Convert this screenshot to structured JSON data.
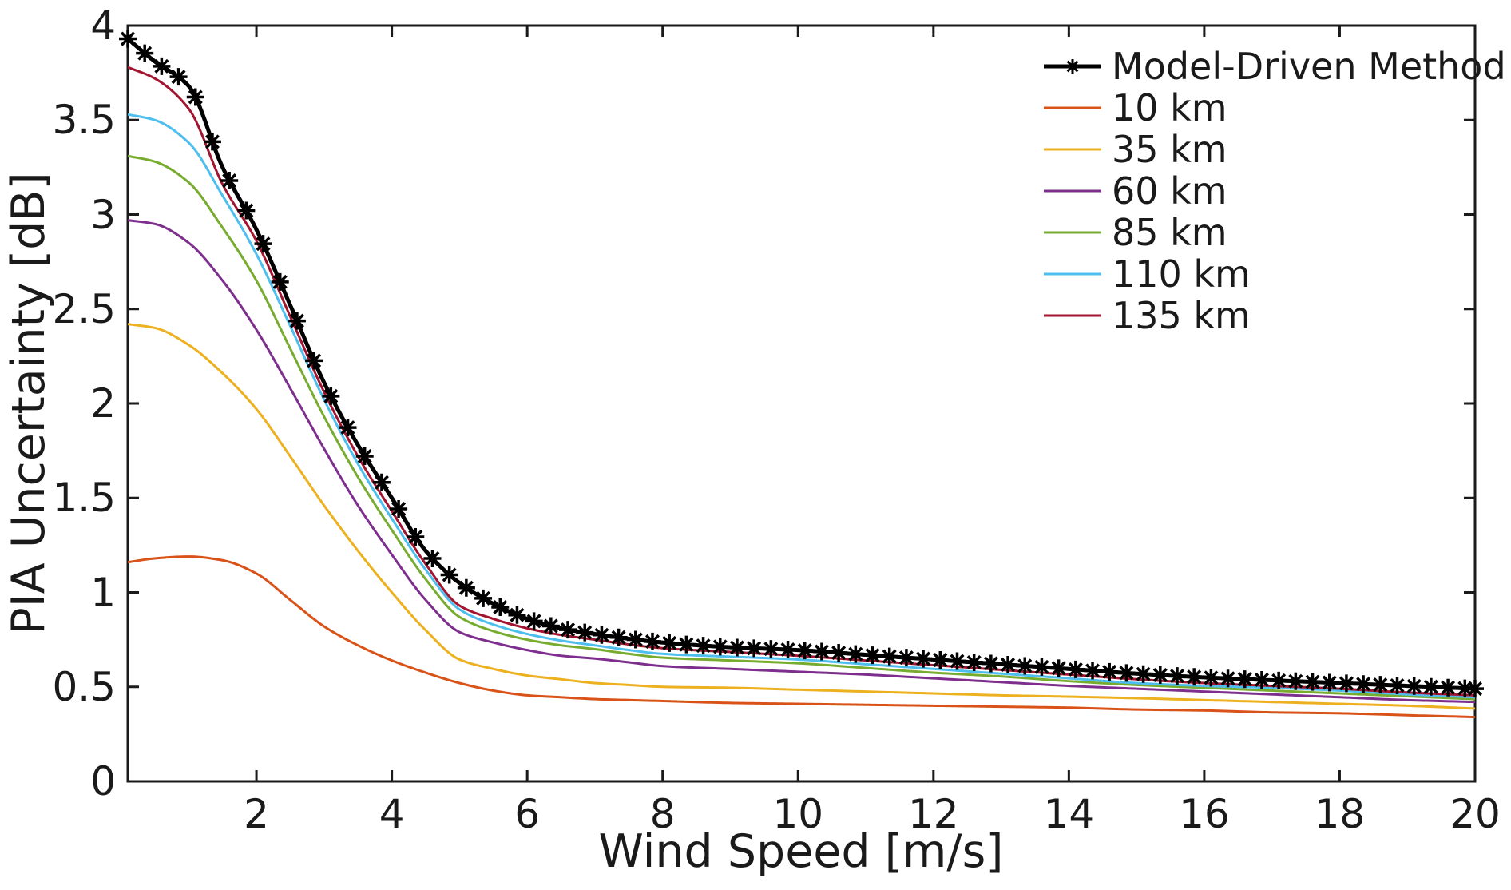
{
  "figure": {
    "background": "#ffffff",
    "text_color": "#1a1a1a"
  },
  "chart_data": {
    "type": "line",
    "title": "",
    "xlabel": "Wind Speed [m/s]",
    "ylabel": "PIA Uncertainty [dB]",
    "xlim": [
      0.1,
      20
    ],
    "ylim": [
      0,
      4
    ],
    "grid": false,
    "box": true,
    "tick_direction": "in",
    "legend_position": "inside-top-right",
    "axis_color": "#1a1a1a",
    "x_ticks": [
      {
        "v": 2,
        "label": "2"
      },
      {
        "v": 4,
        "label": "4"
      },
      {
        "v": 6,
        "label": "6"
      },
      {
        "v": 8,
        "label": "8"
      },
      {
        "v": 10,
        "label": "10"
      },
      {
        "v": 12,
        "label": "12"
      },
      {
        "v": 14,
        "label": "14"
      },
      {
        "v": 16,
        "label": "16"
      },
      {
        "v": 18,
        "label": "18"
      },
      {
        "v": 20,
        "label": "20"
      }
    ],
    "y_ticks": [
      {
        "v": 0,
        "label": "0"
      },
      {
        "v": 0.5,
        "label": "0.5"
      },
      {
        "v": 1,
        "label": "1"
      },
      {
        "v": 1.5,
        "label": "1.5"
      },
      {
        "v": 2,
        "label": "2"
      },
      {
        "v": 2.5,
        "label": "2.5"
      },
      {
        "v": 3,
        "label": "3"
      },
      {
        "v": 3.5,
        "label": "3.5"
      },
      {
        "v": 4,
        "label": "4"
      }
    ],
    "series": [
      {
        "name": "Model-Driven Method",
        "color": "#000000",
        "line_width": 5,
        "marker": "asterisk",
        "marker_interval": 0.25,
        "x": [
          0.1,
          0.5,
          1,
          1.5,
          2,
          2.5,
          3,
          3.5,
          4,
          4.5,
          5,
          5.5,
          6,
          6.5,
          7,
          7.5,
          8,
          9,
          10,
          11,
          12,
          13,
          14,
          15,
          16,
          17,
          18,
          19,
          20
        ],
        "y": [
          3.93,
          3.81,
          3.68,
          3.25,
          2.92,
          2.52,
          2.11,
          1.78,
          1.5,
          1.22,
          1.05,
          0.94,
          0.86,
          0.81,
          0.78,
          0.755,
          0.735,
          0.71,
          0.695,
          0.67,
          0.645,
          0.62,
          0.595,
          0.57,
          0.55,
          0.535,
          0.52,
          0.505,
          0.49
        ]
      },
      {
        "name": "10 km",
        "color": "#D95319",
        "line_width": 3,
        "marker": "none",
        "x": [
          0.1,
          0.5,
          1,
          1.5,
          2,
          2.5,
          3,
          3.5,
          4,
          4.5,
          5,
          5.5,
          6,
          6.5,
          7,
          7.5,
          8,
          9,
          10,
          11,
          12,
          13,
          14,
          15,
          16,
          17,
          18,
          19,
          20
        ],
        "y": [
          1.16,
          1.18,
          1.19,
          1.17,
          1.1,
          0.96,
          0.82,
          0.72,
          0.64,
          0.575,
          0.52,
          0.48,
          0.455,
          0.445,
          0.435,
          0.43,
          0.425,
          0.415,
          0.41,
          0.405,
          0.4,
          0.395,
          0.39,
          0.38,
          0.375,
          0.365,
          0.36,
          0.35,
          0.34
        ]
      },
      {
        "name": "35 km",
        "color": "#EDB120",
        "line_width": 3,
        "marker": "none",
        "x": [
          0.1,
          0.5,
          1,
          1.5,
          2,
          2.5,
          3,
          3.5,
          4,
          4.5,
          5,
          5.5,
          6,
          6.5,
          7,
          7.5,
          8,
          9,
          10,
          11,
          12,
          13,
          14,
          15,
          16,
          17,
          18,
          19,
          20
        ],
        "y": [
          2.42,
          2.4,
          2.31,
          2.16,
          1.97,
          1.72,
          1.46,
          1.22,
          1.0,
          0.8,
          0.645,
          0.595,
          0.56,
          0.54,
          0.52,
          0.51,
          0.5,
          0.495,
          0.485,
          0.475,
          0.465,
          0.455,
          0.448,
          0.44,
          0.43,
          0.42,
          0.41,
          0.4,
          0.385
        ]
      },
      {
        "name": "60 km",
        "color": "#7E2F8E",
        "line_width": 3,
        "marker": "none",
        "x": [
          0.1,
          0.5,
          1,
          1.5,
          2,
          2.5,
          3,
          3.5,
          4,
          4.5,
          5,
          5.5,
          6,
          6.5,
          7,
          7.5,
          8,
          9,
          10,
          11,
          12,
          13,
          14,
          15,
          16,
          17,
          18,
          19,
          20
        ],
        "y": [
          2.97,
          2.95,
          2.85,
          2.65,
          2.39,
          2.08,
          1.76,
          1.46,
          1.2,
          0.96,
          0.79,
          0.735,
          0.695,
          0.665,
          0.65,
          0.63,
          0.61,
          0.595,
          0.58,
          0.565,
          0.545,
          0.525,
          0.505,
          0.49,
          0.475,
          0.46,
          0.445,
          0.43,
          0.42
        ]
      },
      {
        "name": "85 km",
        "color": "#77AC30",
        "line_width": 3,
        "marker": "none",
        "x": [
          0.1,
          0.5,
          1,
          1.5,
          2,
          2.5,
          3,
          3.5,
          4,
          4.5,
          5,
          5.5,
          6,
          6.5,
          7,
          7.5,
          8,
          9,
          10,
          11,
          12,
          13,
          14,
          15,
          16,
          17,
          18,
          19,
          20
        ],
        "y": [
          3.31,
          3.28,
          3.17,
          2.93,
          2.65,
          2.29,
          1.93,
          1.61,
          1.33,
          1.07,
          0.87,
          0.795,
          0.75,
          0.72,
          0.7,
          0.675,
          0.655,
          0.64,
          0.625,
          0.6,
          0.575,
          0.555,
          0.53,
          0.51,
          0.495,
          0.48,
          0.465,
          0.45,
          0.435
        ]
      },
      {
        "name": "110 km",
        "color": "#4DBEEE",
        "line_width": 3,
        "marker": "none",
        "x": [
          0.1,
          0.5,
          1,
          1.5,
          2,
          2.5,
          3,
          3.5,
          4,
          4.5,
          5,
          5.5,
          6,
          6.5,
          7,
          7.5,
          8,
          9,
          10,
          11,
          12,
          13,
          14,
          15,
          16,
          17,
          18,
          19,
          20
        ],
        "y": [
          3.53,
          3.5,
          3.38,
          3.1,
          2.79,
          2.41,
          2.02,
          1.68,
          1.39,
          1.12,
          0.91,
          0.83,
          0.78,
          0.745,
          0.72,
          0.695,
          0.675,
          0.66,
          0.645,
          0.62,
          0.595,
          0.57,
          0.545,
          0.52,
          0.505,
          0.495,
          0.48,
          0.46,
          0.445
        ]
      },
      {
        "name": "135 km",
        "color": "#A2142F",
        "line_width": 3,
        "marker": "none",
        "x": [
          0.1,
          0.5,
          1,
          1.5,
          2,
          2.5,
          3,
          3.5,
          4,
          4.5,
          5,
          5.5,
          6,
          6.5,
          7,
          7.5,
          8,
          9,
          10,
          11,
          12,
          13,
          14,
          15,
          16,
          17,
          18,
          19,
          20
        ],
        "y": [
          3.78,
          3.72,
          3.56,
          3.16,
          2.86,
          2.46,
          2.06,
          1.72,
          1.43,
          1.15,
          0.93,
          0.86,
          0.81,
          0.775,
          0.75,
          0.725,
          0.705,
          0.685,
          0.665,
          0.64,
          0.615,
          0.59,
          0.565,
          0.54,
          0.52,
          0.505,
          0.49,
          0.47,
          0.455
        ]
      }
    ]
  }
}
